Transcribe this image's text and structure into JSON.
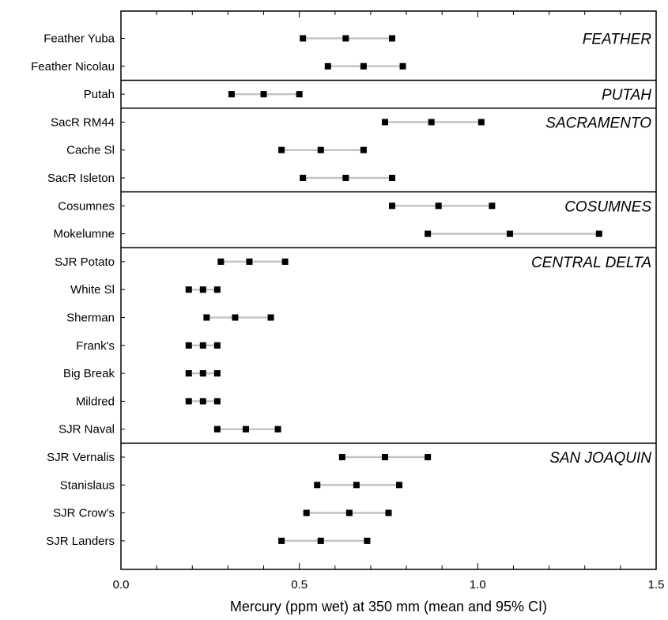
{
  "chart_data": {
    "type": "scatter",
    "xlabel": "Mercury (ppm wet) at 350 mm (mean and 95% CI)",
    "xlim": [
      0.0,
      1.5
    ],
    "xticks": [
      "0.0",
      "0.5",
      "1.0",
      "1.5"
    ],
    "groups": [
      {
        "name": "FEATHER",
        "sites": [
          {
            "site": "Feather Yuba",
            "low": 0.51,
            "mean": 0.63,
            "high": 0.76
          },
          {
            "site": "Feather Nicolau",
            "low": 0.58,
            "mean": 0.68,
            "high": 0.79
          }
        ]
      },
      {
        "name": "PUTAH",
        "sites": [
          {
            "site": "Putah",
            "low": 0.31,
            "mean": 0.4,
            "high": 0.5
          }
        ]
      },
      {
        "name": "SACRAMENTO",
        "sites": [
          {
            "site": "SacR RM44",
            "low": 0.74,
            "mean": 0.87,
            "high": 1.01
          },
          {
            "site": "Cache Sl",
            "low": 0.45,
            "mean": 0.56,
            "high": 0.68
          },
          {
            "site": "SacR Isleton",
            "low": 0.51,
            "mean": 0.63,
            "high": 0.76
          }
        ]
      },
      {
        "name": "COSUMNES",
        "sites": [
          {
            "site": "Cosumnes",
            "low": 0.76,
            "mean": 0.89,
            "high": 1.04
          },
          {
            "site": "Mokelumne",
            "low": 0.86,
            "mean": 1.09,
            "high": 1.34
          }
        ]
      },
      {
        "name": "CENTRAL DELTA",
        "sites": [
          {
            "site": "SJR Potato",
            "low": 0.28,
            "mean": 0.36,
            "high": 0.46
          },
          {
            "site": "White Sl",
            "low": 0.19,
            "mean": 0.23,
            "high": 0.27
          },
          {
            "site": "Sherman",
            "low": 0.24,
            "mean": 0.32,
            "high": 0.42
          },
          {
            "site": "Frank's",
            "low": 0.19,
            "mean": 0.23,
            "high": 0.27
          },
          {
            "site": "Big Break",
            "low": 0.19,
            "mean": 0.23,
            "high": 0.27
          },
          {
            "site": "Mildred",
            "low": 0.19,
            "mean": 0.23,
            "high": 0.27
          },
          {
            "site": "SJR Naval",
            "low": 0.27,
            "mean": 0.35,
            "high": 0.44
          }
        ]
      },
      {
        "name": "SAN JOAQUIN",
        "sites": [
          {
            "site": "SJR Vernalis",
            "low": 0.62,
            "mean": 0.74,
            "high": 0.86
          },
          {
            "site": "Stanislaus",
            "low": 0.55,
            "mean": 0.66,
            "high": 0.78
          },
          {
            "site": "SJR Crow's",
            "low": 0.52,
            "mean": 0.64,
            "high": 0.75
          },
          {
            "site": "SJR Landers",
            "low": 0.45,
            "mean": 0.56,
            "high": 0.69
          }
        ]
      }
    ]
  }
}
